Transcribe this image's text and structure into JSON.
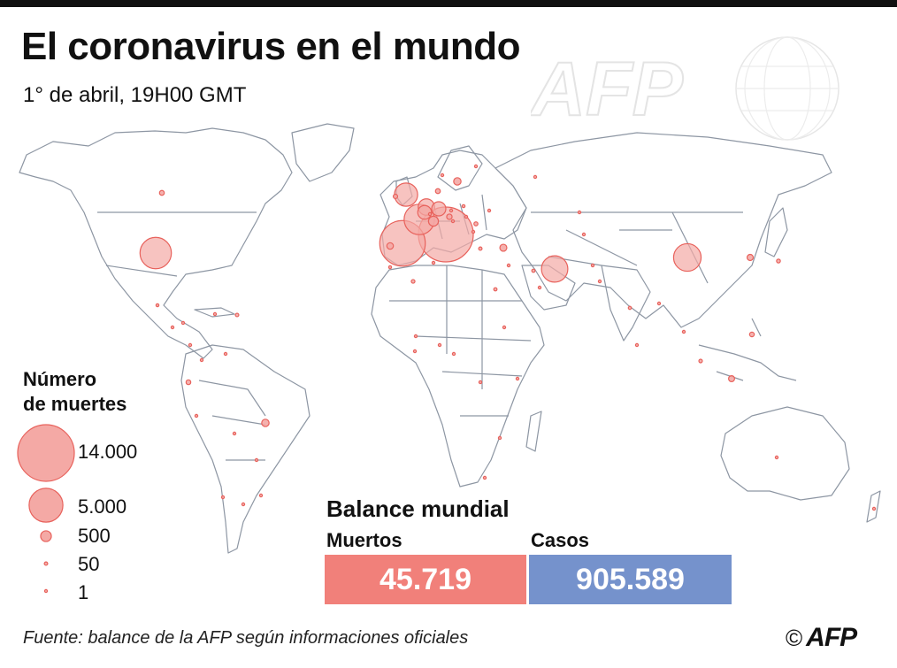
{
  "title": "El coronavirus en el mundo",
  "subtitle": "1° de abril, 19H00 GMT",
  "watermark": "AFP",
  "colors": {
    "bubble_fill": "#f4a9a5",
    "bubble_stroke": "#e8625c",
    "deaths": "#f1807a",
    "cases": "#7592cc",
    "land_stroke": "#8d96a3"
  },
  "legend": {
    "title_line1": "Número",
    "title_line2": "de muertes",
    "items": [
      {
        "label": "14.000",
        "value": 14000
      },
      {
        "label": "5.000",
        "value": 5000
      },
      {
        "label": "500",
        "value": 500
      },
      {
        "label": "50",
        "value": 50
      },
      {
        "label": "1",
        "value": 1
      }
    ]
  },
  "balance": {
    "title": "Balance mundial",
    "deaths_label": "Muertos",
    "deaths_value": "45.719",
    "cases_label": "Casos",
    "cases_value": "905.589"
  },
  "source": "Fuente: balance de la AFP según informaciones oficiales",
  "credit": {
    "copyright": "©",
    "logo": "AFP"
  },
  "markers": [
    {
      "name": "Italy",
      "deaths": 13155
    },
    {
      "name": "Spain",
      "deaths": 9053
    },
    {
      "name": "United States",
      "deaths": 4300
    },
    {
      "name": "France",
      "deaths": 4032
    },
    {
      "name": "China",
      "deaths": 3312
    },
    {
      "name": "Iran",
      "deaths": 3036
    },
    {
      "name": "United Kingdom",
      "deaths": 2352
    },
    {
      "name": "Netherlands",
      "deaths": 1173
    },
    {
      "name": "Germany",
      "deaths": 872
    },
    {
      "name": "Belgium",
      "deaths": 828
    },
    {
      "name": "Switzerland",
      "deaths": 433
    },
    {
      "name": "Turkey",
      "deaths": 214
    },
    {
      "name": "Sweden",
      "deaths": 239
    },
    {
      "name": "Brazil",
      "deaths": 241
    },
    {
      "name": "Portugal",
      "deaths": 187
    },
    {
      "name": "South Korea",
      "deaths": 165
    },
    {
      "name": "Indonesia",
      "deaths": 157
    },
    {
      "name": "Austria",
      "deaths": 128
    },
    {
      "name": "Philippines",
      "deaths": 96
    },
    {
      "name": "Canada",
      "deaths": 101
    },
    {
      "name": "Denmark",
      "deaths": 104
    },
    {
      "name": "Romania",
      "deaths": 69
    },
    {
      "name": "Japan",
      "deaths": 63
    },
    {
      "name": "Ecuador",
      "deaths": 98
    },
    {
      "name": "Algeria",
      "deaths": 58
    },
    {
      "name": "Egypt",
      "deaths": 46
    },
    {
      "name": "India",
      "deaths": 41
    },
    {
      "name": "Iraq",
      "deaths": 46
    },
    {
      "name": "Ireland",
      "deaths": 85
    },
    {
      "name": "Norway",
      "deaths": 32
    },
    {
      "name": "Poland",
      "deaths": 38
    },
    {
      "name": "Mexico",
      "deaths": 37
    },
    {
      "name": "Dominican Republic",
      "deaths": 51
    },
    {
      "name": "Morocco",
      "deaths": 36
    },
    {
      "name": "Malaysia",
      "deaths": 53
    },
    {
      "name": "Greece",
      "deaths": 50
    },
    {
      "name": "Pakistan",
      "deaths": 28
    },
    {
      "name": "Argentina",
      "deaths": 27
    },
    {
      "name": "Peru",
      "deaths": 24
    },
    {
      "name": "Australia",
      "deaths": 19
    },
    {
      "name": "Israel",
      "deaths": 16
    },
    {
      "name": "Thailand",
      "deaths": 15
    },
    {
      "name": "South Africa",
      "deaths": 5
    },
    {
      "name": "Panama",
      "deaths": 30
    },
    {
      "name": "Saudi Arabia",
      "deaths": 16
    },
    {
      "name": "Colombia",
      "deaths": 16
    },
    {
      "name": "Chile",
      "deaths": 16
    },
    {
      "name": "Hungary",
      "deaths": 15
    },
    {
      "name": "Czech Republic",
      "deaths": 23
    },
    {
      "name": "Slovenia",
      "deaths": 15
    },
    {
      "name": "Luxembourg",
      "deaths": 31
    },
    {
      "name": "Serbia",
      "deaths": 16
    },
    {
      "name": "Finland",
      "deaths": 17
    },
    {
      "name": "Ukraine",
      "deaths": 21
    },
    {
      "name": "Russia",
      "deaths": 17
    },
    {
      "name": "Bangladesh",
      "deaths": 6
    },
    {
      "name": "Tunisia",
      "deaths": 14
    },
    {
      "name": "Cuba",
      "deaths": 6
    },
    {
      "name": "Venezuela",
      "deaths": 3
    },
    {
      "name": "Bolivia",
      "deaths": 3
    },
    {
      "name": "Sri Lanka",
      "deaths": 3
    },
    {
      "name": "Nigeria",
      "deaths": 2
    },
    {
      "name": "Ghana",
      "deaths": 5
    },
    {
      "name": "Cameroon",
      "deaths": 7
    },
    {
      "name": "DR Congo",
      "deaths": 13
    },
    {
      "name": "Burkina Faso",
      "deaths": 16
    },
    {
      "name": "Kenya",
      "deaths": 1
    },
    {
      "name": "Zimbabwe",
      "deaths": 1
    },
    {
      "name": "Sudan",
      "deaths": 2
    },
    {
      "name": "Uruguay",
      "deaths": 1
    },
    {
      "name": "Paraguay",
      "deaths": 3
    },
    {
      "name": "Kazakhstan",
      "deaths": 1
    },
    {
      "name": "Uzbekistan",
      "deaths": 2
    },
    {
      "name": "Afghanistan",
      "deaths": 4
    },
    {
      "name": "Guatemala",
      "deaths": 1
    },
    {
      "name": "Honduras",
      "deaths": 7
    },
    {
      "name": "New Zealand",
      "deaths": 1
    }
  ]
}
